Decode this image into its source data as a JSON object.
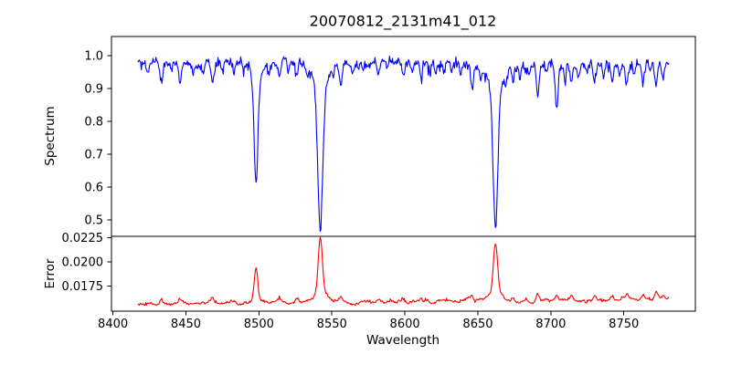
{
  "chart_data": {
    "type": "line",
    "title": "20070812_2131m41_012",
    "xlabel": "Wavelength",
    "xlim": [
      8399,
      8799
    ],
    "x_data_range": [
      8417,
      8781
    ],
    "sample_step_angstrom": 0.5,
    "grid": false,
    "legend": "none",
    "x_ticks": [
      {
        "value": 8400,
        "label": "8400"
      },
      {
        "value": 8450,
        "label": "8450"
      },
      {
        "value": 8500,
        "label": "8500"
      },
      {
        "value": 8550,
        "label": "8550"
      },
      {
        "value": 8600,
        "label": "8600"
      },
      {
        "value": 8650,
        "label": "8650"
      },
      {
        "value": 8700,
        "label": "8700"
      },
      {
        "value": 8750,
        "label": "8750"
      }
    ],
    "panels": [
      {
        "name": "spectrum",
        "ylabel": "Spectrum",
        "line_color": "#0000ff",
        "ylim": [
          0.45,
          1.058
        ],
        "y_ticks": [
          {
            "value": 1.0,
            "label": "1.0"
          },
          {
            "value": 0.9,
            "label": "0.9"
          },
          {
            "value": 0.8,
            "label": "0.8"
          },
          {
            "value": 0.7,
            "label": "0.7"
          },
          {
            "value": 0.6,
            "label": "0.6"
          },
          {
            "value": 0.5,
            "label": "0.5"
          }
        ],
        "continuum_level": 0.977,
        "noise_sigma": 0.0065,
        "major_absorption_lines": [
          {
            "center": 8498.0,
            "min_flux": 0.61,
            "core_depth": 0.318,
            "core_width": 1.3,
            "wing_depth": 0.05,
            "wing_width": 4.0
          },
          {
            "center": 8542.1,
            "min_flux": 0.472,
            "core_depth": 0.44,
            "core_width": 1.7,
            "wing_depth": 0.066,
            "wing_width": 6.0
          },
          {
            "center": 8662.1,
            "min_flux": 0.494,
            "core_depth": 0.418,
            "core_width": 1.6,
            "wing_depth": 0.066,
            "wing_width": 5.5
          }
        ],
        "minor_absorption_lines": [
          [
            8424,
            0.025,
            0.8
          ],
          [
            8433,
            0.062,
            0.9
          ],
          [
            8440,
            0.03,
            0.7
          ],
          [
            8446,
            0.048,
            0.8
          ],
          [
            8455,
            0.025,
            0.7
          ],
          [
            8462,
            0.03,
            0.7
          ],
          [
            8468,
            0.068,
            0.9
          ],
          [
            8475,
            0.025,
            0.7
          ],
          [
            8483,
            0.032,
            0.7
          ],
          [
            8490,
            0.02,
            0.7
          ],
          [
            8507,
            0.03,
            0.7
          ],
          [
            8514,
            0.05,
            0.9
          ],
          [
            8520,
            0.035,
            0.7
          ],
          [
            8526,
            0.04,
            0.8
          ],
          [
            8533,
            0.03,
            0.7
          ],
          [
            8551,
            0.03,
            0.7
          ],
          [
            8556,
            0.06,
            0.9
          ],
          [
            8564,
            0.03,
            0.7
          ],
          [
            8571,
            0.025,
            0.7
          ],
          [
            8582,
            0.042,
            0.8
          ],
          [
            8588,
            0.025,
            0.7
          ],
          [
            8599,
            0.05,
            0.9
          ],
          [
            8605,
            0.03,
            0.7
          ],
          [
            8611,
            0.042,
            0.8
          ],
          [
            8617,
            0.025,
            0.7
          ],
          [
            8621,
            0.032,
            0.7
          ],
          [
            8627,
            0.025,
            0.7
          ],
          [
            8632,
            0.03,
            0.7
          ],
          [
            8638,
            0.025,
            0.7
          ],
          [
            8646,
            0.085,
            0.9
          ],
          [
            8652,
            0.03,
            0.7
          ],
          [
            8669,
            0.03,
            0.7
          ],
          [
            8674,
            0.05,
            0.8
          ],
          [
            8679,
            0.042,
            0.8
          ],
          [
            8685,
            0.03,
            0.7
          ],
          [
            8691,
            0.095,
            0.9
          ],
          [
            8697,
            0.03,
            0.7
          ],
          [
            8704,
            0.125,
            0.9
          ],
          [
            8710,
            0.04,
            0.7
          ],
          [
            8714,
            0.055,
            0.8
          ],
          [
            8719,
            0.04,
            0.7
          ],
          [
            8724,
            0.03,
            0.7
          ],
          [
            8730,
            0.05,
            0.8
          ],
          [
            8736,
            0.04,
            0.7
          ],
          [
            8742,
            0.05,
            0.8
          ],
          [
            8747,
            0.035,
            0.7
          ],
          [
            8752,
            0.065,
            0.9
          ],
          [
            8757,
            0.04,
            0.7
          ],
          [
            8763,
            0.05,
            0.8
          ],
          [
            8768,
            0.035,
            0.7
          ],
          [
            8772,
            0.075,
            0.9
          ],
          [
            8777,
            0.045,
            0.8
          ]
        ]
      },
      {
        "name": "error",
        "ylabel": "Error",
        "line_color": "#ff0000",
        "ylim": [
          0.0149,
          0.0226
        ],
        "y_ticks": [
          {
            "value": 0.0225,
            "label": "0.0225"
          },
          {
            "value": 0.02,
            "label": "0.0200"
          },
          {
            "value": 0.0175,
            "label": "0.0175"
          }
        ],
        "baseline": 0.01563,
        "baseline_slope_per_angstrom": 1.4e-06,
        "noise_sigma": 5e-05,
        "major_error_peaks": [
          {
            "center": 8498.0,
            "peak_value": 0.0193,
            "core_height": 0.0031,
            "core_width": 1.2,
            "wing_height": 0.0004,
            "wing_width": 3.5
          },
          {
            "center": 8542.1,
            "peak_value": 0.0224,
            "core_height": 0.0058,
            "core_width": 1.4,
            "wing_height": 0.0009,
            "wing_width": 5.0
          },
          {
            "center": 8662.1,
            "peak_value": 0.0217,
            "core_height": 0.0052,
            "core_width": 1.4,
            "wing_height": 0.0008,
            "wing_width": 5.0
          }
        ],
        "minor_error_peaks": [
          [
            8433,
            0.0004,
            1.0
          ],
          [
            8446,
            0.0003,
            0.9
          ],
          [
            8468,
            0.0004,
            1.0
          ],
          [
            8514,
            0.0004,
            1.0
          ],
          [
            8526,
            0.0003,
            0.9
          ],
          [
            8556,
            0.0004,
            1.0
          ],
          [
            8582,
            0.0003,
            0.9
          ],
          [
            8599,
            0.0003,
            0.9
          ],
          [
            8611,
            0.0003,
            0.8
          ],
          [
            8646,
            0.0005,
            1.0
          ],
          [
            8674,
            0.0004,
            0.9
          ],
          [
            8691,
            0.0006,
            1.0
          ],
          [
            8704,
            0.0005,
            0.9
          ],
          [
            8714,
            0.0004,
            0.9
          ],
          [
            8730,
            0.0004,
            0.9
          ],
          [
            8742,
            0.0004,
            0.9
          ],
          [
            8752,
            0.0005,
            0.9
          ],
          [
            8763,
            0.0004,
            0.8
          ],
          [
            8772,
            0.0007,
            1.0
          ],
          [
            8777,
            0.0004,
            0.8
          ]
        ]
      }
    ],
    "colors": {
      "spectrum_line": "#0000ff",
      "error_line": "#ff0000",
      "axes": "#000000",
      "background": "#ffffff"
    }
  }
}
